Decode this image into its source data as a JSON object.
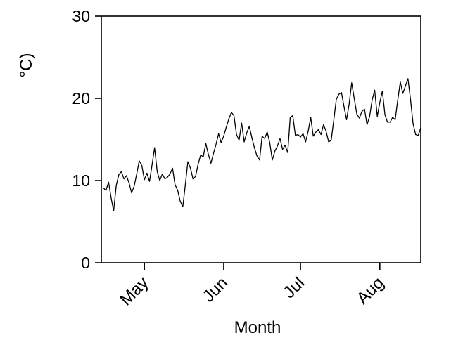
{
  "figure": {
    "background": "#ffffff",
    "foreground": "#000000"
  },
  "chart_data": {
    "type": "line",
    "title": "",
    "xlabel": "Month",
    "ylabel": "°C)",
    "grid": false,
    "legend": null,
    "line_color": "#000000",
    "ylim": [
      0,
      30
    ],
    "yticks": [
      0,
      10,
      20,
      30
    ],
    "x_tick_labels": [
      "May",
      "Jun",
      "Jul",
      "Aug"
    ],
    "x_tick_day_index": [
      16,
      47,
      77,
      108
    ],
    "x_description": "daily observations, day index 0-124 spanning mid-April to mid-August",
    "values": [
      9.1,
      8.8,
      9.8,
      7.9,
      6.3,
      9.4,
      10.7,
      11.1,
      10.2,
      10.6,
      9.7,
      8.5,
      9.3,
      10.8,
      12.4,
      11.8,
      10.1,
      10.9,
      9.9,
      11.9,
      14.0,
      11.1,
      10.0,
      10.8,
      10.2,
      10.4,
      10.8,
      11.5,
      9.5,
      8.8,
      7.5,
      6.8,
      9.5,
      12.3,
      11.5,
      10.2,
      10.5,
      12.0,
      13.1,
      12.9,
      14.5,
      13.2,
      12.1,
      13.3,
      14.4,
      15.7,
      14.6,
      15.4,
      16.5,
      17.5,
      18.3,
      17.9,
      15.6,
      14.9,
      17.0,
      14.7,
      15.8,
      16.6,
      15.2,
      14.0,
      13.0,
      12.5,
      15.4,
      15.1,
      15.9,
      14.6,
      12.5,
      13.6,
      14.2,
      15.1,
      13.8,
      14.3,
      13.4,
      17.7,
      17.9,
      15.5,
      15.6,
      15.3,
      15.7,
      14.7,
      16.0,
      17.7,
      15.4,
      15.9,
      16.2,
      15.6,
      16.8,
      16.0,
      14.7,
      14.9,
      17.3,
      19.9,
      20.5,
      20.7,
      19.0,
      17.4,
      19.3,
      21.9,
      20.0,
      18.1,
      17.6,
      18.4,
      18.7,
      16.8,
      17.8,
      19.8,
      21.0,
      17.8,
      19.5,
      20.9,
      18.0,
      17.1,
      17.1,
      17.7,
      17.4,
      19.8,
      22.0,
      20.6,
      21.5,
      22.4,
      19.8,
      16.9,
      15.6,
      15.5,
      16.4
    ]
  }
}
